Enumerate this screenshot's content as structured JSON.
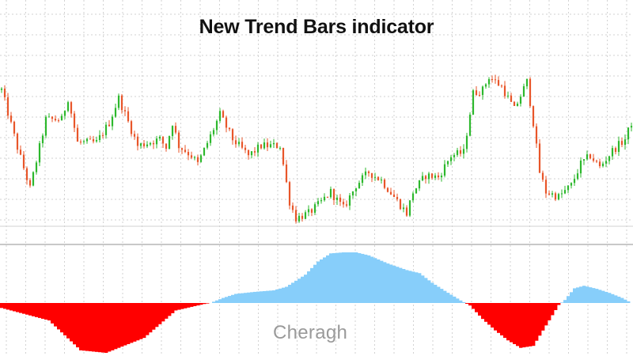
{
  "title": "New Trend Bars indicator",
  "watermark": "Cheragh",
  "colors": {
    "background": "#ffffff",
    "grid": "#d2d2d2",
    "separator": "#c8c8c8",
    "candle_up": "#2db82d",
    "candle_down": "#e8562a",
    "histogram_positive": "#87cefa",
    "histogram_negative": "#ff0000",
    "title": "#111111",
    "watermark": "#9a9a9a"
  },
  "chart_data": [
    {
      "type": "candlestick",
      "title": "New Trend Bars indicator",
      "grid": true,
      "bars": 200,
      "up_color": "green",
      "down_color": "orange-red",
      "price_path_relative": [
        [
          0,
          0.8
        ],
        [
          5,
          0.45
        ],
        [
          9,
          0.2
        ],
        [
          14,
          0.62
        ],
        [
          19,
          0.62
        ],
        [
          21,
          0.75
        ],
        [
          24,
          0.48
        ],
        [
          30,
          0.48
        ],
        [
          34,
          0.6
        ],
        [
          37,
          0.75
        ],
        [
          43,
          0.46
        ],
        [
          50,
          0.5
        ],
        [
          52,
          0.45
        ],
        [
          54,
          0.6
        ],
        [
          56,
          0.46
        ],
        [
          60,
          0.4
        ],
        [
          62,
          0.35
        ],
        [
          66,
          0.52
        ],
        [
          69,
          0.65
        ],
        [
          73,
          0.5
        ],
        [
          78,
          0.4
        ],
        [
          82,
          0.46
        ],
        [
          85,
          0.46
        ],
        [
          88,
          0.46
        ],
        [
          91,
          0.12
        ],
        [
          93,
          0.02
        ],
        [
          97,
          0.05
        ],
        [
          100,
          0.1
        ],
        [
          104,
          0.18
        ],
        [
          108,
          0.08
        ],
        [
          112,
          0.22
        ],
        [
          116,
          0.3
        ],
        [
          120,
          0.25
        ],
        [
          124,
          0.15
        ],
        [
          128,
          0.05
        ],
        [
          130,
          0.18
        ],
        [
          134,
          0.28
        ],
        [
          138,
          0.27
        ],
        [
          142,
          0.4
        ],
        [
          146,
          0.42
        ],
        [
          149,
          0.78
        ],
        [
          152,
          0.8
        ],
        [
          154,
          0.88
        ],
        [
          158,
          0.82
        ],
        [
          162,
          0.68
        ],
        [
          166,
          0.85
        ],
        [
          168,
          0.6
        ],
        [
          170,
          0.3
        ],
        [
          172,
          0.18
        ],
        [
          176,
          0.15
        ],
        [
          180,
          0.22
        ],
        [
          183,
          0.35
        ],
        [
          186,
          0.4
        ],
        [
          189,
          0.33
        ],
        [
          193,
          0.43
        ],
        [
          197,
          0.5
        ],
        [
          199,
          0.6
        ]
      ]
    },
    {
      "type": "area",
      "name": "",
      "baseline": 0,
      "positive_color": "light-blue",
      "negative_color": "red",
      "x": [
        0,
        15,
        25,
        33,
        45,
        55,
        64,
        66,
        70,
        74,
        80,
        86,
        90,
        96,
        100,
        104,
        108,
        112,
        116,
        122,
        128,
        132,
        136,
        140,
        145,
        148,
        152,
        156,
        160,
        164,
        168,
        172,
        176,
        178,
        181,
        184,
        188,
        192,
        196,
        199
      ],
      "values": [
        -0.1,
        -0.35,
        -0.95,
        -1.0,
        -0.7,
        -0.15,
        -0.02,
        0.0,
        0.1,
        0.18,
        0.22,
        0.25,
        0.32,
        0.56,
        0.82,
        0.98,
        1.0,
        1.0,
        0.94,
        0.78,
        0.65,
        0.59,
        0.4,
        0.24,
        0.05,
        -0.05,
        -0.32,
        -0.55,
        -0.75,
        -0.9,
        -0.86,
        -0.45,
        -0.04,
        0.06,
        0.29,
        0.34,
        0.28,
        0.2,
        0.1,
        0.0
      ]
    }
  ]
}
